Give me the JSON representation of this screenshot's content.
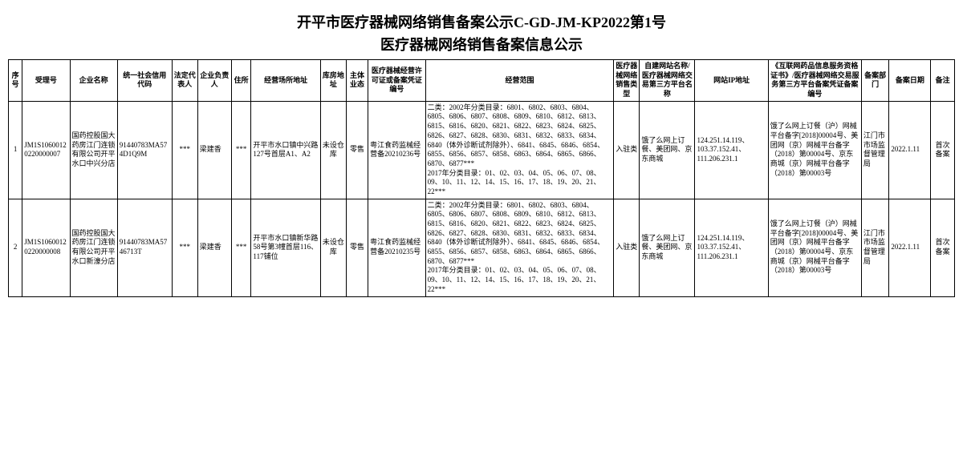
{
  "title": "开平市医疗器械网络销售备案公示C-GD-JM-KP2022第1号",
  "subtitle": "医疗器械网络销售备案信息公示",
  "headers": {
    "seq": "序号",
    "regnum": "受理号",
    "ent": "企业名称",
    "usc": "统一社会信用代码",
    "legal": "法定代表人",
    "owner": "企业负责人",
    "addr": "住所",
    "bizaddr": "经营场所地址",
    "warehouse": "库房地址",
    "subject": "主体业态",
    "license": "医疗器械经营许可证或备案凭证编号",
    "scope": "经营范围",
    "saletype": "医疗器械网络销售类型",
    "platform": "自建网站名称/医疗器械网络交易第三方平台名称",
    "ip": "网站IP地址",
    "cert": "《互联网药品信息服务资格证书》/医疗器械网络交易服务第三方平台备案凭证备案编号",
    "dept": "备案部门",
    "date": "备案日期",
    "remark": "备注"
  },
  "rows": [
    {
      "seq": "1",
      "regnum": "JM1S10600120220000007",
      "ent": "国药控股国大药房江门连锁有限公司开平水口中兴分店",
      "usc": "91440783MA574D1Q9M",
      "legal": "***",
      "owner": "梁建香",
      "addr": "***",
      "bizaddr": "开平市水口镇中兴路127号首层A1、A2",
      "warehouse": "未设仓库",
      "subject": "零售",
      "license": "粤江食药监械经营备20210236号",
      "scope": "二类：2002年分类目录：6801、6802、6803、6804、6805、6806、6807、6808、6809、6810、6812、6813、6815、6816、6820、6821、6822、6823、6824、6825、6826、6827、6828、6830、6831、6832、6833、6834、6840（体外诊断试剂除外）、6841、6845、6846、6854、6855、6856、6857、6858、6863、6864、6865、6866、6870、6877***\n2017年分类目录：01、02、03、04、05、06、07、08、09、10、11、12、14、15、16、17、18、19、20、21、22***",
      "saletype": "入驻类",
      "platform": "饿了么网上订餐、美团网、京东商城",
      "ip": "124.251.14.119、103.37.152.41、111.206.231.1",
      "cert": "饿了么网上订餐（沪）网械平台备字[2018]00004号、美团网（京）网械平台备字（2018）第00004号、京东商城（京）网械平台备字（2018）第00003号",
      "dept": "江门市市场监督管理局",
      "date": "2022.1.11",
      "remark": "首次备案"
    },
    {
      "seq": "2",
      "regnum": "JM1S10600120220000008",
      "ent": "国药控股国大药房江门连锁有限公司开平水口新濠分店",
      "usc": "91440783MA5746713T",
      "legal": "***",
      "owner": "梁建香",
      "addr": "***",
      "bizaddr": "开平市水口镇新华路58号第3幢首层116、117铺位",
      "warehouse": "未设仓库",
      "subject": "零售",
      "license": "粤江食药监械经营备20210235号",
      "scope": "二类：2002年分类目录：6801、6802、6803、6804、6805、6806、6807、6808、6809、6810、6812、6813、6815、6816、6820、6821、6822、6823、6824、6825、6826、6827、6828、6830、6831、6832、6833、6834、6840（体外诊断试剂除外）、6841、6845、6846、6854、6855、6856、6857、6858、6863、6864、6865、6866、6870、6877***\n2017年分类目录：01、02、03、04、05、06、07、08、09、10、11、12、14、15、16、17、18、19、20、21、22***",
      "saletype": "入驻类",
      "platform": "饿了么网上订餐、美团网、京东商城",
      "ip": "124.251.14.119、103.37.152.41、111.206.231.1",
      "cert": "饿了么网上订餐（沪）网械平台备字[2018]00004号、美团网（京）网械平台备字（2018）第00004号、京东商城（京）网械平台备字（2018）第00003号",
      "dept": "江门市市场监督管理局",
      "date": "2022.1.11",
      "remark": "首次备案"
    }
  ]
}
